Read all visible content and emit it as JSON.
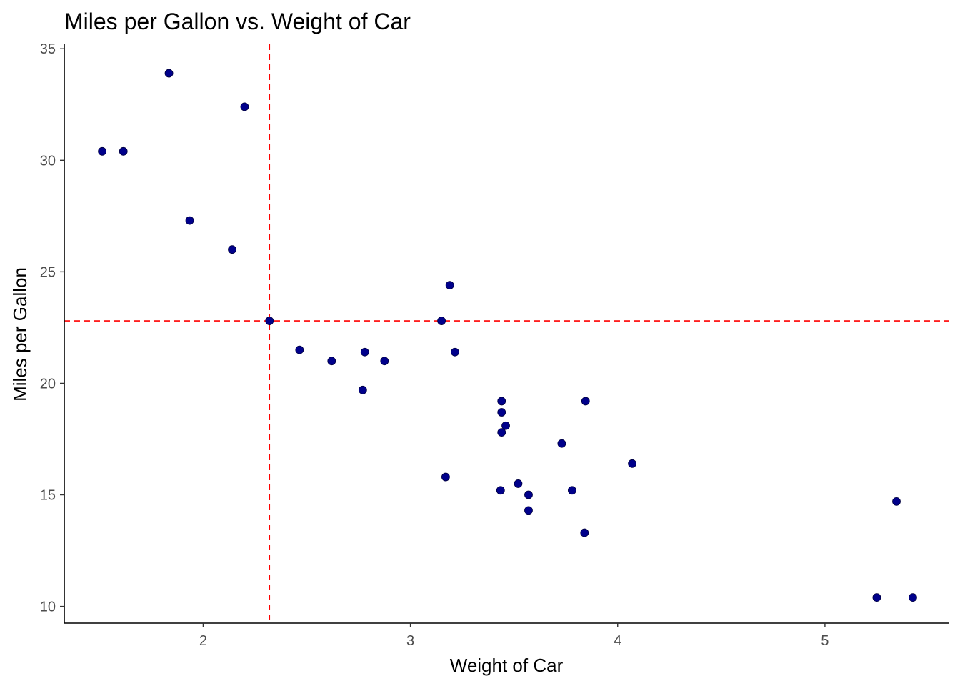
{
  "chart_data": {
    "type": "scatter",
    "title": "Miles per Gallon vs. Weight of Car",
    "xlabel": "Weight of Car",
    "ylabel": "Miles per Gallon",
    "xlim": [
      1.33,
      5.6
    ],
    "ylim": [
      9.25,
      35.2
    ],
    "xticks": [
      2,
      3,
      4,
      5
    ],
    "yticks": [
      10,
      15,
      20,
      25,
      30,
      35
    ],
    "grid": false,
    "legend": "none",
    "point_color": "#00008b",
    "reference_line_color": "#ff0000",
    "reference_lines": {
      "x": 2.32,
      "y": 22.8
    },
    "series": [
      {
        "x": [
          1.513,
          1.615,
          1.835,
          1.935,
          2.14,
          2.2,
          2.32,
          2.465,
          2.62,
          2.77,
          2.78,
          2.875,
          3.15,
          3.17,
          3.19,
          3.215,
          3.435,
          3.44,
          3.44,
          3.44,
          3.46,
          3.52,
          3.57,
          3.57,
          3.73,
          3.78,
          3.84,
          3.845,
          4.07,
          5.25,
          5.345,
          5.424
        ],
        "y": [
          30.4,
          30.4,
          33.9,
          27.3,
          26.0,
          32.4,
          22.8,
          21.5,
          21.0,
          19.7,
          21.4,
          21.0,
          22.8,
          15.8,
          24.4,
          21.4,
          15.2,
          19.2,
          18.7,
          17.8,
          18.1,
          15.5,
          15.0,
          14.3,
          17.3,
          15.2,
          13.3,
          19.2,
          16.4,
          10.4,
          14.7,
          10.4
        ]
      }
    ]
  }
}
